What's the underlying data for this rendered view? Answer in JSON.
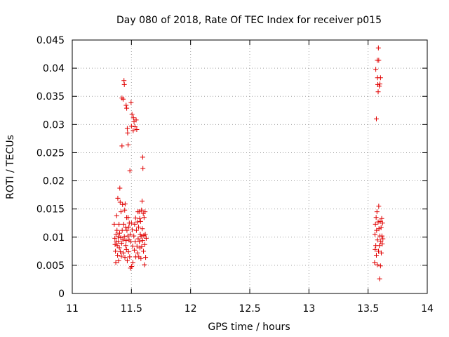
{
  "chart_data": {
    "type": "scatter",
    "title": "Day 080 of 2018, Rate Of TEC Index for receiver p015",
    "xlabel": "GPS time / hours",
    "ylabel": "ROTI / TECUs",
    "xlim": [
      11,
      14
    ],
    "ylim": [
      0,
      0.045
    ],
    "xticks": [
      11,
      11.5,
      12,
      12.5,
      13,
      13.5,
      14
    ],
    "xtick_labels": [
      "11",
      "11.5",
      "12",
      "12.5",
      "13",
      "13.5",
      "14"
    ],
    "yticks": [
      0,
      0.005,
      0.01,
      0.015,
      0.02,
      0.025,
      0.03,
      0.035,
      0.04,
      0.045
    ],
    "ytick_labels": [
      "0",
      "0.005",
      "0.01",
      "0.015",
      "0.02",
      "0.025",
      "0.03",
      "0.035",
      "0.04",
      "0.045"
    ],
    "grid": true,
    "marker": "+",
    "color": "#e00000",
    "series": [
      {
        "name": "p015",
        "points": [
          [
            11.355,
            0.0123
          ],
          [
            11.36,
            0.0098
          ],
          [
            11.362,
            0.0087
          ],
          [
            11.365,
            0.0075
          ],
          [
            11.368,
            0.0055
          ],
          [
            11.37,
            0.0105
          ],
          [
            11.372,
            0.0092
          ],
          [
            11.375,
            0.0138
          ],
          [
            11.378,
            0.0112
          ],
          [
            11.38,
            0.0085
          ],
          [
            11.383,
            0.0068
          ],
          [
            11.385,
            0.0169
          ],
          [
            11.388,
            0.0101
          ],
          [
            11.39,
            0.0092
          ],
          [
            11.392,
            0.0058
          ],
          [
            11.395,
            0.0123
          ],
          [
            11.398,
            0.0081
          ],
          [
            11.4,
            0.0107
          ],
          [
            11.402,
            0.0187
          ],
          [
            11.405,
            0.0162
          ],
          [
            11.407,
            0.0074
          ],
          [
            11.41,
            0.0099
          ],
          [
            11.412,
            0.0145
          ],
          [
            11.415,
            0.0066
          ],
          [
            11.417,
            0.0089
          ],
          [
            11.42,
            0.0347
          ],
          [
            11.42,
            0.0262
          ],
          [
            11.422,
            0.0112
          ],
          [
            11.425,
            0.0158
          ],
          [
            11.428,
            0.0095
          ],
          [
            11.43,
            0.0345
          ],
          [
            11.432,
            0.0072
          ],
          [
            11.435,
            0.0123
          ],
          [
            11.437,
            0.0378
          ],
          [
            11.44,
            0.0371
          ],
          [
            11.44,
            0.0101
          ],
          [
            11.443,
            0.0148
          ],
          [
            11.445,
            0.0064
          ],
          [
            11.447,
            0.0159
          ],
          [
            11.45,
            0.0117
          ],
          [
            11.452,
            0.0085
          ],
          [
            11.455,
            0.0334
          ],
          [
            11.455,
            0.0094
          ],
          [
            11.458,
            0.0078
          ],
          [
            11.46,
            0.0329
          ],
          [
            11.46,
            0.0135
          ],
          [
            11.462,
            0.0112
          ],
          [
            11.465,
            0.0293
          ],
          [
            11.465,
            0.0058
          ],
          [
            11.468,
            0.0285
          ],
          [
            11.47,
            0.0102
          ],
          [
            11.472,
            0.0135
          ],
          [
            11.472,
            0.0264
          ],
          [
            11.475,
            0.0074
          ],
          [
            11.478,
            0.0118
          ],
          [
            11.48,
            0.0095
          ],
          [
            11.482,
            0.0125
          ],
          [
            11.485,
            0.0065
          ],
          [
            11.487,
            0.0218
          ],
          [
            11.49,
            0.0105
          ],
          [
            11.492,
            0.0045
          ],
          [
            11.495,
            0.0092
          ],
          [
            11.497,
            0.0339
          ],
          [
            11.5,
            0.0125
          ],
          [
            11.5,
            0.0297
          ],
          [
            11.502,
            0.0048
          ],
          [
            11.505,
            0.0318
          ],
          [
            11.507,
            0.0113
          ],
          [
            11.51,
            0.0084
          ],
          [
            11.512,
            0.0055
          ],
          [
            11.515,
            0.0289
          ],
          [
            11.517,
            0.0312
          ],
          [
            11.52,
            0.0102
          ],
          [
            11.522,
            0.0305
          ],
          [
            11.525,
            0.0077
          ],
          [
            11.527,
            0.0123
          ],
          [
            11.53,
            0.0296
          ],
          [
            11.532,
            0.0092
          ],
          [
            11.535,
            0.0134
          ],
          [
            11.537,
            0.0065
          ],
          [
            11.54,
            0.0308
          ],
          [
            11.542,
            0.0112
          ],
          [
            11.545,
            0.0291
          ],
          [
            11.547,
            0.0084
          ],
          [
            11.55,
            0.0127
          ],
          [
            11.552,
            0.0072
          ],
          [
            11.555,
            0.0145
          ],
          [
            11.557,
            0.0097
          ],
          [
            11.56,
            0.0118
          ],
          [
            11.562,
            0.0065
          ],
          [
            11.565,
            0.0145
          ],
          [
            11.567,
            0.0092
          ],
          [
            11.57,
            0.0133
          ],
          [
            11.572,
            0.0081
          ],
          [
            11.575,
            0.0105
          ],
          [
            11.577,
            0.0128
          ],
          [
            11.58,
            0.0062
          ],
          [
            11.582,
            0.0101
          ],
          [
            11.585,
            0.0148
          ],
          [
            11.587,
            0.0083
          ],
          [
            11.59,
            0.0164
          ],
          [
            11.592,
            0.0115
          ],
          [
            11.595,
            0.0242
          ],
          [
            11.595,
            0.0094
          ],
          [
            11.597,
            0.0222
          ],
          [
            11.6,
            0.0142
          ],
          [
            11.602,
            0.0075
          ],
          [
            11.605,
            0.0103
          ],
          [
            11.607,
            0.0135
          ],
          [
            11.61,
            0.0051
          ],
          [
            11.612,
            0.0087
          ],
          [
            11.615,
            0.0145
          ],
          [
            11.617,
            0.0105
          ],
          [
            11.62,
            0.0064
          ],
          [
            11.625,
            0.0098
          ],
          [
            13.555,
            0.0055
          ],
          [
            13.558,
            0.0105
          ],
          [
            13.56,
            0.0078
          ],
          [
            13.562,
            0.0123
          ],
          [
            13.565,
            0.0398
          ],
          [
            13.565,
            0.0085
          ],
          [
            13.568,
            0.0135
          ],
          [
            13.57,
            0.031
          ],
          [
            13.57,
            0.0068
          ],
          [
            13.572,
            0.0112
          ],
          [
            13.575,
            0.0145
          ],
          [
            13.578,
            0.0414
          ],
          [
            13.578,
            0.0051
          ],
          [
            13.58,
            0.0383
          ],
          [
            13.58,
            0.0095
          ],
          [
            13.582,
            0.0371
          ],
          [
            13.585,
            0.0358
          ],
          [
            13.585,
            0.0127
          ],
          [
            13.587,
            0.0436
          ],
          [
            13.588,
            0.0075
          ],
          [
            13.59,
            0.0414
          ],
          [
            13.59,
            0.0155
          ],
          [
            13.592,
            0.0115
          ],
          [
            13.595,
            0.0368
          ],
          [
            13.595,
            0.0085
          ],
          [
            13.597,
            0.0026
          ],
          [
            13.6,
            0.0372
          ],
          [
            13.6,
            0.0102
          ],
          [
            13.602,
            0.0128
          ],
          [
            13.605,
            0.0383
          ],
          [
            13.605,
            0.0049
          ],
          [
            13.607,
            0.0092
          ],
          [
            13.61,
            0.0117
          ],
          [
            13.612,
            0.0072
          ],
          [
            13.615,
            0.0133
          ],
          [
            13.617,
            0.0102
          ],
          [
            13.62,
            0.0088
          ],
          [
            13.622,
            0.0125
          ],
          [
            13.625,
            0.0097
          ]
        ]
      }
    ]
  }
}
